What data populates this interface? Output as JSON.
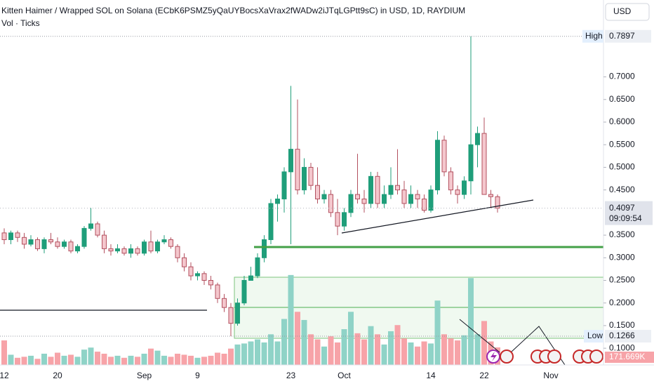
{
  "chart_data": {
    "type": "candlestick",
    "title": "Kitten Haimer / Wrapped SOL on Solana (ECbK6PSMZ5yQaUYBocsXaVrax2fWADw2iJTqLGPtt9sC) in USD, 1D, RAYDIUM",
    "subtitle": "Vol · Ticks",
    "currency": "USD",
    "high_label": "High",
    "low_label": "Low",
    "countdown": "09:09:54",
    "categories": [
      "12",
      null,
      null,
      null,
      null,
      null,
      null,
      null,
      "20",
      null,
      null,
      null,
      null,
      null,
      null,
      null,
      null,
      null,
      null,
      null,
      null,
      "Sep",
      null,
      null,
      null,
      null,
      null,
      null,
      null,
      "9",
      null,
      null,
      null,
      null,
      null,
      null,
      null,
      null,
      null,
      null,
      null,
      null,
      null,
      "23",
      null,
      null,
      null,
      null,
      null,
      null,
      null,
      "Oct",
      null,
      null,
      null,
      null,
      null,
      null,
      null,
      null,
      null,
      null,
      null,
      null,
      "14",
      null,
      null,
      null,
      null,
      null,
      null,
      null,
      "22",
      null,
      null,
      null,
      null,
      null,
      null,
      null,
      null,
      null,
      "Nov",
      null,
      null,
      null,
      null,
      null,
      null,
      null
    ],
    "open": [
      0.355,
      0.34,
      0.355,
      0.345,
      0.33,
      0.34,
      0.32,
      0.34,
      0.335,
      0.325,
      0.335,
      0.315,
      0.325,
      0.365,
      0.375,
      0.35,
      0.32,
      0.315,
      0.32,
      0.31,
      0.32,
      0.31,
      0.335,
      0.315,
      0.335,
      0.34,
      0.325,
      0.3,
      0.28,
      0.26,
      0.265,
      0.25,
      0.24,
      0.21,
      0.19,
      0.155,
      0.2,
      0.25,
      0.26,
      0.3,
      0.34,
      0.42,
      0.43,
      0.49,
      0.54,
      0.45,
      0.5,
      0.46,
      0.43,
      0.44,
      0.4,
      0.37,
      0.4,
      0.44,
      0.43,
      0.42,
      0.48,
      0.42,
      0.44,
      0.46,
      0.45,
      0.42,
      0.44,
      0.43,
      0.405,
      0.45,
      0.56,
      0.49,
      0.45,
      0.44,
      0.47,
      0.55,
      0.575,
      0.44,
      0.435,
      null,
      null,
      null,
      null,
      null,
      null,
      null,
      null,
      null,
      null,
      null,
      null,
      null,
      null,
      null
    ],
    "high": [
      0.365,
      0.36,
      0.36,
      0.355,
      0.35,
      0.345,
      0.345,
      0.355,
      0.345,
      0.34,
      0.34,
      0.33,
      0.37,
      0.41,
      0.38,
      0.36,
      0.33,
      0.33,
      0.325,
      0.33,
      0.325,
      0.34,
      0.36,
      0.34,
      0.35,
      0.345,
      0.33,
      0.31,
      0.29,
      0.27,
      0.27,
      0.26,
      0.245,
      0.22,
      0.2,
      0.21,
      0.26,
      0.28,
      0.31,
      0.35,
      0.43,
      0.44,
      0.5,
      0.68,
      0.65,
      0.52,
      0.51,
      0.5,
      0.45,
      0.45,
      0.43,
      0.41,
      0.45,
      0.53,
      0.45,
      0.49,
      0.49,
      0.46,
      0.5,
      0.54,
      0.47,
      0.46,
      0.45,
      0.44,
      0.46,
      0.58,
      0.57,
      0.5,
      0.46,
      0.48,
      0.7897,
      0.59,
      0.61,
      0.45,
      0.44,
      null,
      null,
      null,
      null,
      null,
      null,
      null,
      null,
      null,
      null,
      null,
      null,
      null,
      null,
      null
    ],
    "low": [
      0.33,
      0.33,
      0.335,
      0.32,
      0.325,
      0.315,
      0.31,
      0.33,
      0.32,
      0.32,
      0.31,
      0.31,
      0.32,
      0.36,
      0.345,
      0.31,
      0.305,
      0.31,
      0.305,
      0.3,
      0.305,
      0.305,
      0.31,
      0.31,
      0.33,
      0.32,
      0.29,
      0.27,
      0.25,
      0.25,
      0.24,
      0.23,
      0.2,
      0.18,
      0.1266,
      0.15,
      0.195,
      0.25,
      0.255,
      0.29,
      0.33,
      0.38,
      0.4,
      0.33,
      0.44,
      0.44,
      0.45,
      0.42,
      0.42,
      0.39,
      0.35,
      0.36,
      0.39,
      0.42,
      0.4,
      0.41,
      0.41,
      0.41,
      0.43,
      0.44,
      0.41,
      0.41,
      0.41,
      0.4,
      0.4,
      0.44,
      0.48,
      0.44,
      0.42,
      0.43,
      0.44,
      0.5,
      0.44,
      0.41,
      0.4,
      null,
      null,
      null,
      null,
      null,
      null,
      null,
      null,
      null,
      null,
      null,
      null,
      null,
      null,
      null
    ],
    "close": [
      0.34,
      0.355,
      0.345,
      0.33,
      0.34,
      0.32,
      0.34,
      0.335,
      0.325,
      0.335,
      0.315,
      0.325,
      0.365,
      0.375,
      0.35,
      0.32,
      0.315,
      0.32,
      0.31,
      0.32,
      0.31,
      0.335,
      0.315,
      0.335,
      0.34,
      0.325,
      0.3,
      0.28,
      0.26,
      0.265,
      0.25,
      0.24,
      0.21,
      0.19,
      0.155,
      0.2,
      0.25,
      0.26,
      0.3,
      0.34,
      0.42,
      0.43,
      0.49,
      0.54,
      0.45,
      0.5,
      0.46,
      0.43,
      0.44,
      0.4,
      0.37,
      0.4,
      0.44,
      0.43,
      0.42,
      0.48,
      0.42,
      0.44,
      0.46,
      0.45,
      0.42,
      0.44,
      0.43,
      0.405,
      0.45,
      0.56,
      0.49,
      0.45,
      0.44,
      0.47,
      0.55,
      0.575,
      0.44,
      0.435,
      0.4097,
      null,
      null,
      null,
      null,
      null,
      null,
      null,
      null,
      null,
      null,
      null,
      null,
      null,
      null,
      null
    ],
    "volume": {
      "values": [
        240000,
        100000,
        70000,
        80000,
        90000,
        60000,
        110000,
        80000,
        120000,
        90000,
        100000,
        80000,
        150000,
        170000,
        130000,
        110000,
        80000,
        90000,
        70000,
        90000,
        80000,
        110000,
        160000,
        140000,
        90000,
        80000,
        110000,
        100000,
        90000,
        70000,
        80000,
        90000,
        120000,
        110000,
        160000,
        200000,
        210000,
        230000,
        250000,
        220000,
        300000,
        230000,
        450000,
        880000,
        520000,
        440000,
        300000,
        250000,
        180000,
        280000,
        220000,
        350000,
        520000,
        310000,
        250000,
        380000,
        300000,
        200000,
        330000,
        390000,
        260000,
        220000,
        180000,
        230000,
        210000,
        630000,
        300000,
        260000,
        240000,
        290000,
        850000,
        300000,
        430000,
        230000,
        171669,
        null,
        null,
        null,
        null,
        null,
        null,
        null,
        null,
        null,
        null,
        null,
        null,
        null,
        null,
        null
      ],
      "value_labels": {
        "74": "171.669K"
      },
      "vlim": [
        0,
        3571000
      ],
      "up_color": "#8fd3c7",
      "down_color": "#f7a3a8"
    },
    "ylim": [
      0.063,
      0.87
    ],
    "yticks": [
      {
        "value": 0.1,
        "label": "0.1000"
      },
      {
        "value": 0.15,
        "label": "0.1500"
      },
      {
        "value": 0.2,
        "label": "0.2000"
      },
      {
        "value": 0.25,
        "label": "0.2500"
      },
      {
        "value": 0.3,
        "label": "0.3000"
      },
      {
        "value": 0.35,
        "label": "0.3500"
      },
      {
        "value": 0.45,
        "label": "0.4500"
      },
      {
        "value": 0.5,
        "label": "0.5000"
      },
      {
        "value": 0.55,
        "label": "0.5500"
      },
      {
        "value": 0.6,
        "label": "0.6000"
      },
      {
        "value": 0.65,
        "label": "0.6500"
      },
      {
        "value": 0.7,
        "label": "0.7000"
      }
    ],
    "grid": false,
    "up_color": "#1f9e7a",
    "down_color": "#f4c7cd",
    "down_border": "#b3505f"
  }
}
